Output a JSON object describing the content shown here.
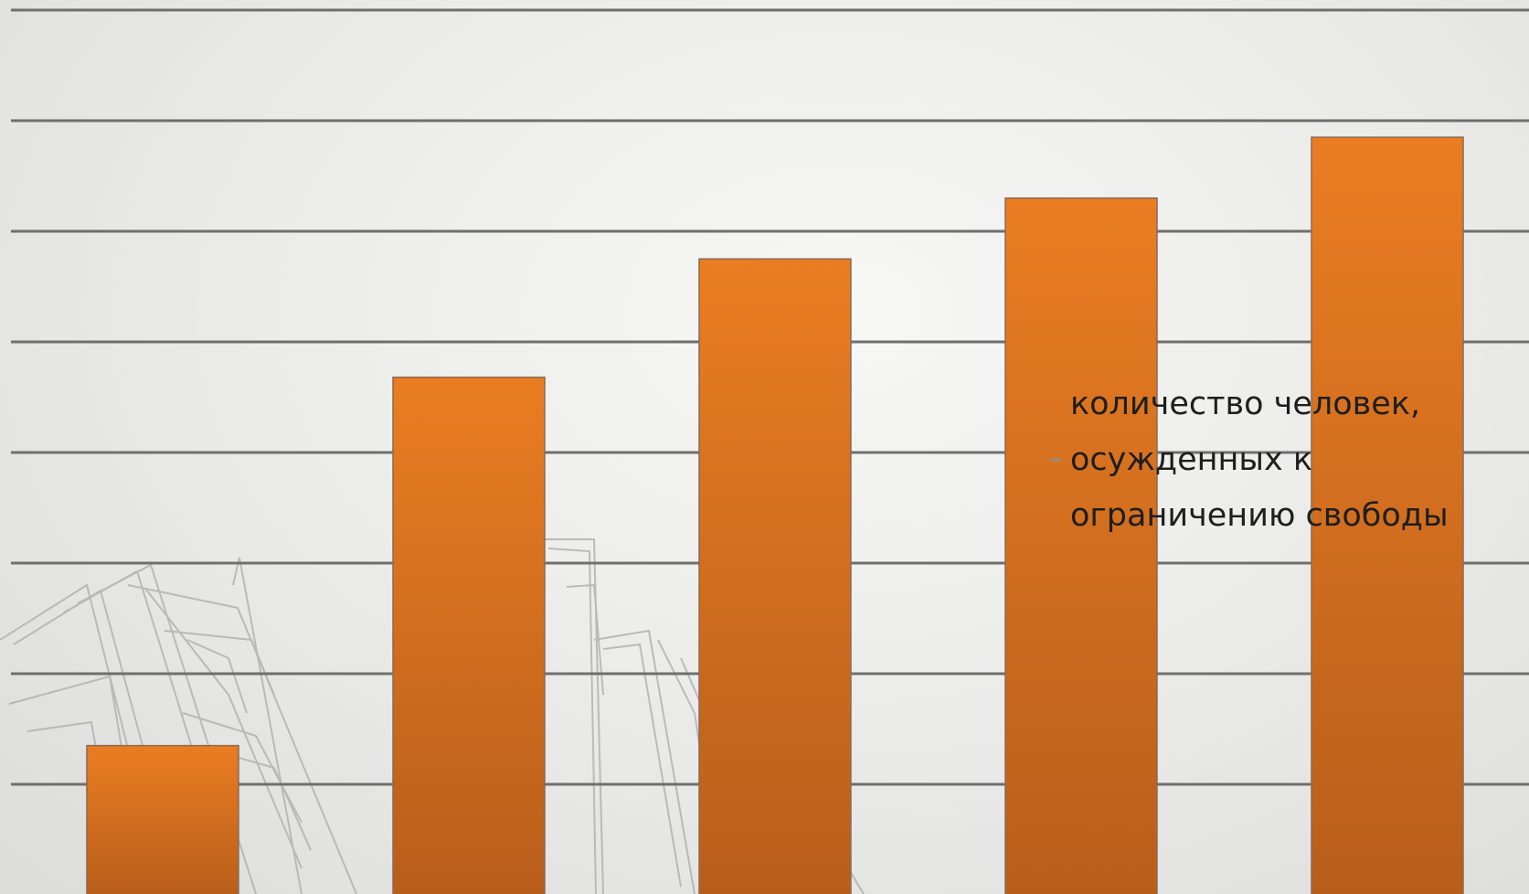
{
  "chart_data": {
    "type": "bar",
    "categories": [
      "",
      "",
      "",
      "",
      ""
    ],
    "series": [
      {
        "name": "количество человек, осужденных к ограничению свободы",
        "values": [
          1.35,
          4.68,
          5.75,
          6.3,
          6.85
        ],
        "color": "#e57c24"
      }
    ],
    "ylim": [
      0,
      8
    ],
    "grid": true,
    "legend": {
      "placement": "right",
      "lines": [
        "количество человек,",
        "осужденных к",
        "ограничению свободы"
      ]
    }
  },
  "colors": {
    "bar_top": "#ea7d22",
    "bar_bottom": "#b85e1b",
    "bar_stroke": "#8a6a55",
    "gridline": "#6f6f6f",
    "sketch": "#b2b2b2"
  }
}
